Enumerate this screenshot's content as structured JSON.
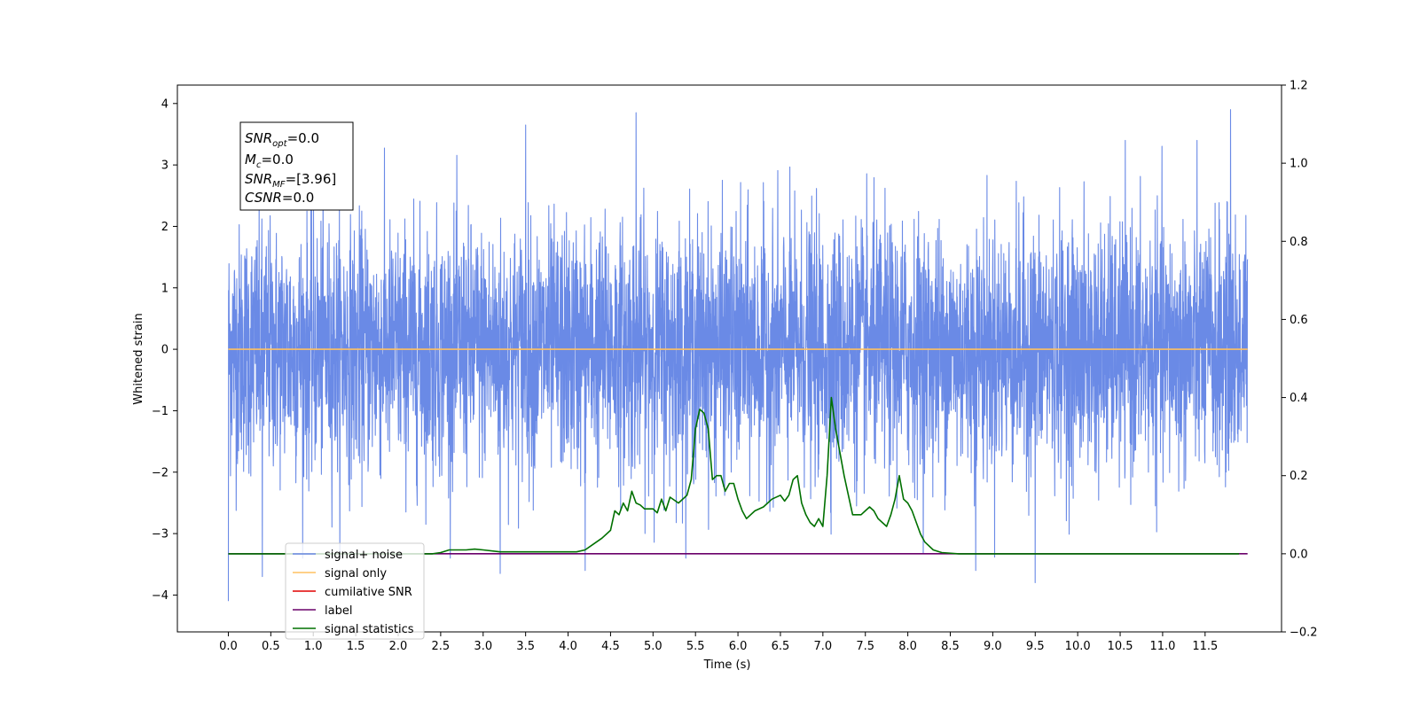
{
  "chart_data": {
    "type": "line",
    "xlabel": "Time (s)",
    "ylabel": "Whitened strain",
    "xlim": [
      -0.6,
      12.4
    ],
    "ylim": [
      -4.6,
      4.3
    ],
    "y2lim": [
      -0.2,
      1.2
    ],
    "x_ticks": [
      "0.0",
      "0.5",
      "1.0",
      "1.5",
      "2.0",
      "2.5",
      "3.0",
      "3.5",
      "4.0",
      "4.5",
      "5.0",
      "5.5",
      "6.0",
      "6.5",
      "7.0",
      "7.5",
      "8.0",
      "8.5",
      "9.0",
      "9.5",
      "10.0",
      "10.5",
      "11.0",
      "11.5"
    ],
    "y_ticks": [
      "4",
      "3",
      "2",
      "1",
      "0",
      "−1",
      "−2",
      "−3",
      "−4"
    ],
    "y2_ticks": [
      "1.2",
      "1.0",
      "0.8",
      "0.6",
      "0.4",
      "0.2",
      "0.0",
      "−0.2"
    ],
    "annotation": {
      "line1": {
        "sym": "SNR",
        "sub": "opt",
        "val": "=0.0"
      },
      "line2": {
        "sym": "M",
        "sub": "c",
        "val": "=0.0"
      },
      "line3": {
        "sym": "SNR",
        "sub": "MF",
        "val": "=[3.96]"
      },
      "line4": {
        "sym": "CSNR",
        "sub": "",
        "val": "=0.0"
      }
    },
    "legend": {
      "position": "lower-left",
      "entries": [
        {
          "label": "signal+ noise",
          "color": "#6a8ae6"
        },
        {
          "label": "signal only",
          "color": "#ffc060"
        },
        {
          "label": "cumilative SNR",
          "color": "#e00000"
        },
        {
          "label": "label",
          "color": "#6a006a"
        },
        {
          "label": "signal statistics",
          "color": "#007000"
        }
      ]
    },
    "series": [
      {
        "name": "signal+ noise",
        "axis": "left",
        "color": "#6a8ae6",
        "kind": "gaussian-noise",
        "x_range": [
          0.0,
          12.0
        ],
        "std": 1.0,
        "peak_values": [
          {
            "x": 0.0,
            "y": -4.1
          },
          {
            "x": 0.4,
            "y": -3.7
          },
          {
            "x": 3.2,
            "y": -3.65
          },
          {
            "x": 3.5,
            "y": 3.65
          },
          {
            "x": 4.2,
            "y": -3.6
          },
          {
            "x": 4.8,
            "y": 3.85
          },
          {
            "x": 8.8,
            "y": -3.6
          },
          {
            "x": 9.5,
            "y": -3.8
          },
          {
            "x": 11.8,
            "y": 3.9
          }
        ]
      },
      {
        "name": "signal only",
        "axis": "left",
        "color": "#ffc060",
        "x": [
          0.0,
          12.0
        ],
        "y": [
          0.0,
          0.0
        ]
      },
      {
        "name": "label",
        "axis": "right",
        "color": "#6a006a",
        "x": [
          0.0,
          12.0
        ],
        "y": [
          0.0,
          0.0
        ]
      },
      {
        "name": "signal statistics",
        "axis": "right",
        "color": "#007000",
        "x": [
          0.0,
          0.5,
          1.0,
          1.5,
          2.0,
          2.4,
          2.5,
          2.6,
          2.7,
          2.8,
          2.9,
          3.0,
          3.2,
          3.4,
          3.6,
          3.8,
          4.0,
          4.1,
          4.2,
          4.3,
          4.4,
          4.5,
          4.55,
          4.6,
          4.65,
          4.7,
          4.75,
          4.8,
          4.85,
          4.9,
          5.0,
          5.05,
          5.1,
          5.15,
          5.2,
          5.3,
          5.4,
          5.45,
          5.5,
          5.55,
          5.6,
          5.65,
          5.7,
          5.75,
          5.8,
          5.85,
          5.9,
          5.95,
          6.0,
          6.05,
          6.1,
          6.15,
          6.2,
          6.3,
          6.4,
          6.5,
          6.55,
          6.6,
          6.65,
          6.7,
          6.75,
          6.8,
          6.85,
          6.9,
          6.95,
          7.0,
          7.05,
          7.1,
          7.15,
          7.2,
          7.25,
          7.3,
          7.35,
          7.4,
          7.45,
          7.5,
          7.55,
          7.6,
          7.65,
          7.7,
          7.75,
          7.8,
          7.85,
          7.9,
          7.95,
          8.0,
          8.05,
          8.1,
          8.15,
          8.2,
          8.3,
          8.4,
          8.6,
          9.0,
          10.0,
          11.0,
          11.9
        ],
        "y": [
          0.0,
          0.0,
          0.0,
          0.0,
          0.0,
          0.0,
          0.003,
          0.01,
          0.01,
          0.01,
          0.012,
          0.01,
          0.005,
          0.005,
          0.005,
          0.005,
          0.005,
          0.005,
          0.01,
          0.025,
          0.04,
          0.06,
          0.11,
          0.1,
          0.13,
          0.11,
          0.16,
          0.13,
          0.125,
          0.115,
          0.115,
          0.105,
          0.14,
          0.11,
          0.145,
          0.13,
          0.15,
          0.19,
          0.32,
          0.37,
          0.36,
          0.32,
          0.19,
          0.2,
          0.2,
          0.16,
          0.18,
          0.18,
          0.14,
          0.11,
          0.09,
          0.1,
          0.11,
          0.12,
          0.14,
          0.15,
          0.135,
          0.15,
          0.19,
          0.2,
          0.13,
          0.1,
          0.08,
          0.07,
          0.09,
          0.07,
          0.2,
          0.4,
          0.32,
          0.26,
          0.2,
          0.15,
          0.1,
          0.1,
          0.1,
          0.11,
          0.12,
          0.11,
          0.09,
          0.08,
          0.07,
          0.1,
          0.14,
          0.2,
          0.14,
          0.13,
          0.11,
          0.08,
          0.05,
          0.03,
          0.01,
          0.003,
          0.0,
          0.0,
          0.0,
          0.0,
          0.0
        ]
      }
    ]
  }
}
